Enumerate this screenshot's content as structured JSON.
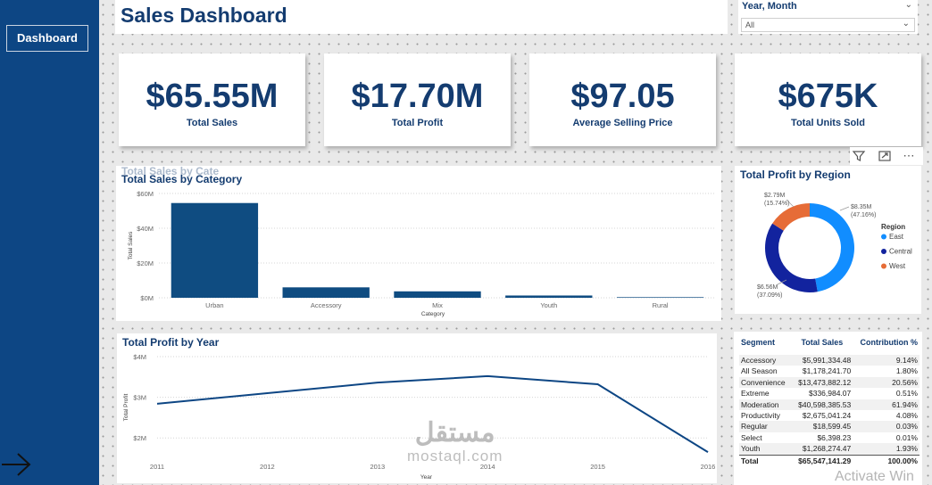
{
  "sidebar": {
    "nav_label": "Dashboard"
  },
  "header": {
    "title": "Sales Dashboard"
  },
  "slicer": {
    "label": "Year, Month",
    "value": "All"
  },
  "kpis": [
    {
      "value": "$65.55M",
      "label": "Total Sales"
    },
    {
      "value": "$17.70M",
      "label": "Total Profit"
    },
    {
      "value": "$97.05",
      "label": "Average Selling Price"
    },
    {
      "value": "$675K",
      "label": "Total Units Sold"
    }
  ],
  "ghost_title": "Total Sales by Cate",
  "colors": {
    "primary": "#0d4684",
    "bar": "#0f4c81",
    "east": "#118dff",
    "central": "#12239e",
    "west": "#e66c37"
  },
  "segment_table": {
    "headers": [
      "Segment",
      "Total Sales",
      "Contribution %"
    ],
    "rows": [
      [
        "Accessory",
        "$5,991,334.48",
        "9.14%"
      ],
      [
        "All Season",
        "$1,178,241.70",
        "1.80%"
      ],
      [
        "Convenience",
        "$13,473,882.12",
        "20.56%"
      ],
      [
        "Extreme",
        "$336,984.07",
        "0.51%"
      ],
      [
        "Moderation",
        "$40,598,385.53",
        "61.94%"
      ],
      [
        "Productivity",
        "$2,675,041.24",
        "4.08%"
      ],
      [
        "Regular",
        "$18,599.45",
        "0.03%"
      ],
      [
        "Select",
        "$6,398.23",
        "0.01%"
      ],
      [
        "Youth",
        "$1,268,274.47",
        "1.93%"
      ]
    ],
    "total": [
      "Total",
      "$65,547,141.29",
      "100.00%"
    ]
  },
  "watermark": {
    "arabic": "مستقل",
    "latin": "mostaql.com"
  },
  "overlay_text": "Activate Win",
  "chart_data": [
    {
      "type": "bar",
      "title": "Total Sales by Category",
      "xlabel": "Category",
      "ylabel": "Total Sales",
      "categories": [
        "Urban",
        "Accessory",
        "Mix",
        "Youth",
        "Rural"
      ],
      "values": [
        54.5,
        6.0,
        3.7,
        1.3,
        0.35
      ],
      "unit": "M",
      "yticks": [
        "$0M",
        "$20M",
        "$40M",
        "$60M"
      ],
      "ylim": [
        0,
        60
      ],
      "grid": true
    },
    {
      "type": "pie",
      "title": "Total Profit by Region",
      "legend_title": "Region",
      "legend_position": "right",
      "labels": [
        "East",
        "Central",
        "West"
      ],
      "values": [
        8.35,
        6.56,
        2.79
      ],
      "value_labels": [
        "$8.35M",
        "$6.56M",
        "$2.79M"
      ],
      "percent_labels": [
        "(47.16%)",
        "(37.09%)",
        "(15.74%)"
      ]
    },
    {
      "type": "line",
      "title": "Total Profit by Year",
      "xlabel": "Year",
      "ylabel": "Total Profit",
      "x": [
        2011,
        2012,
        2013,
        2014,
        2015,
        2016
      ],
      "y": [
        2.84,
        3.1,
        3.36,
        3.52,
        3.32,
        1.65
      ],
      "unit": "M",
      "yticks": [
        "$2M",
        "$3M",
        "$4M"
      ],
      "ylim": [
        1.5,
        4
      ],
      "grid": true
    }
  ]
}
